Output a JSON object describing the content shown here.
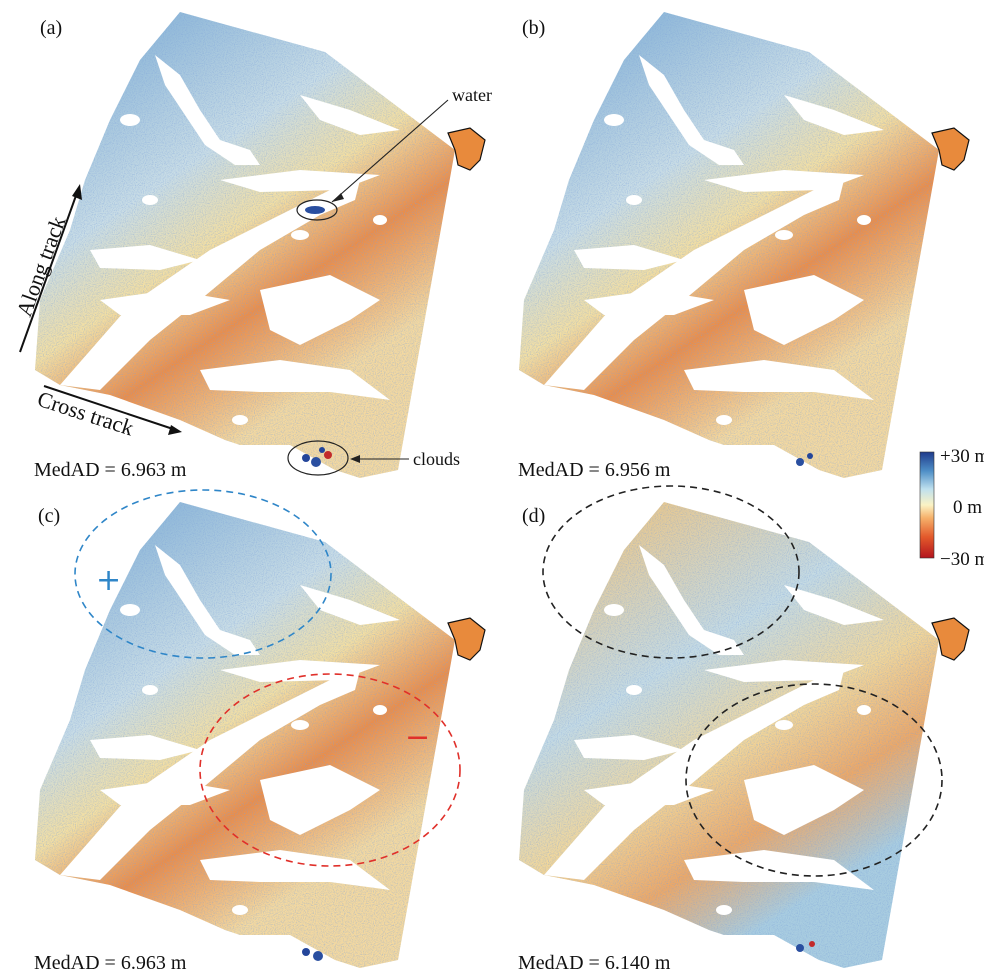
{
  "panels": [
    {
      "id": "a",
      "label": "(a)",
      "medad": "MedAD = 6.963 m"
    },
    {
      "id": "b",
      "label": "(b)",
      "medad": "MedAD = 6.956 m"
    },
    {
      "id": "c",
      "label": "(c)",
      "medad": "MedAD = 6.963 m"
    },
    {
      "id": "d",
      "label": "(d)",
      "medad": "MedAD = 6.140 m"
    }
  ],
  "annotations": {
    "water": "water",
    "clouds": "clouds",
    "along_track": "Along track",
    "cross_track": "Cross track",
    "plus_sign": "+",
    "minus_sign": "−"
  },
  "colorbar": {
    "max_label": "+30 m",
    "mid_label": "0 m",
    "min_label": "−30 m",
    "colors": [
      "#1f3b8c",
      "#4f8fc7",
      "#bfe0ee",
      "#fbf3c4",
      "#f6b26b",
      "#e35a2b",
      "#b3141e"
    ]
  },
  "ellipse_colors": {
    "blue": "#2f86c8",
    "red": "#e0302a",
    "black": "#222222"
  }
}
